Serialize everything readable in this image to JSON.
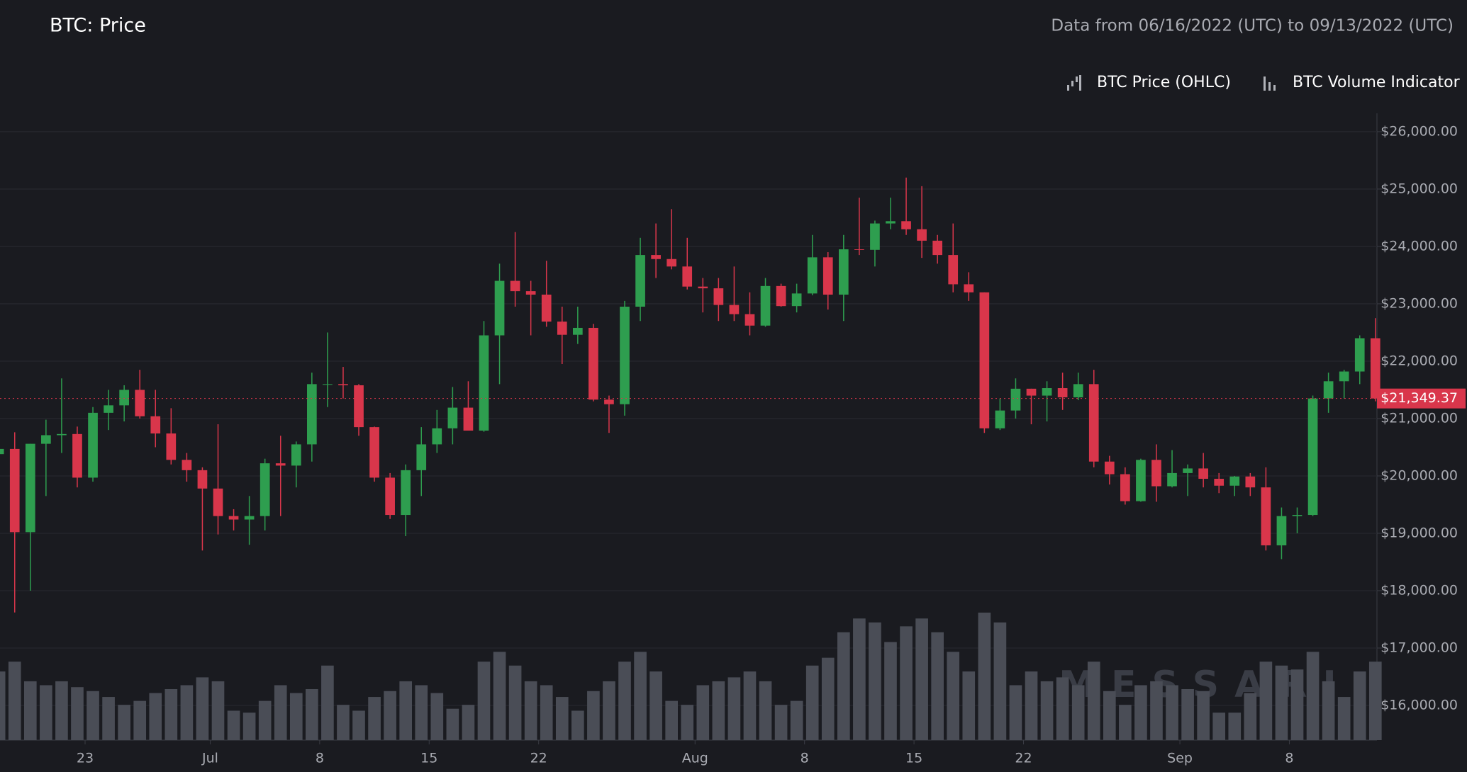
{
  "chart_data": {
    "type": "candlestick",
    "title": "BTC: Price",
    "subtitle": "Data from 06/16/2022 (UTC) to 09/13/2022 (UTC)",
    "legend": [
      "BTC Price (OHLC)",
      "BTC Volume Indicator"
    ],
    "watermark": "MESSARI",
    "up_color": "#2e9e4f",
    "down_color": "#d9364b",
    "volume_color": "#4a4d56",
    "x": [
      "2022-06-17",
      "2022-06-18",
      "2022-06-19",
      "2022-06-20",
      "2022-06-21",
      "2022-06-22",
      "2022-06-23",
      "2022-06-24",
      "2022-06-25",
      "2022-06-26",
      "2022-06-27",
      "2022-06-28",
      "2022-06-29",
      "2022-06-30",
      "2022-07-01",
      "2022-07-02",
      "2022-07-03",
      "2022-07-04",
      "2022-07-05",
      "2022-07-06",
      "2022-07-07",
      "2022-07-08",
      "2022-07-09",
      "2022-07-10",
      "2022-07-11",
      "2022-07-12",
      "2022-07-13",
      "2022-07-14",
      "2022-07-15",
      "2022-07-16",
      "2022-07-17",
      "2022-07-18",
      "2022-07-19",
      "2022-07-20",
      "2022-07-21",
      "2022-07-22",
      "2022-07-23",
      "2022-07-24",
      "2022-07-25",
      "2022-07-26",
      "2022-07-27",
      "2022-07-28",
      "2022-07-29",
      "2022-07-30",
      "2022-07-31",
      "2022-08-01",
      "2022-08-02",
      "2022-08-03",
      "2022-08-04",
      "2022-08-05",
      "2022-08-06",
      "2022-08-07",
      "2022-08-08",
      "2022-08-09",
      "2022-08-10",
      "2022-08-11",
      "2022-08-12",
      "2022-08-13",
      "2022-08-14",
      "2022-08-15",
      "2022-08-16",
      "2022-08-17",
      "2022-08-18",
      "2022-08-19",
      "2022-08-20",
      "2022-08-21",
      "2022-08-22",
      "2022-08-23",
      "2022-08-24",
      "2022-08-25",
      "2022-08-26",
      "2022-08-27",
      "2022-08-28",
      "2022-08-29",
      "2022-08-30",
      "2022-08-31",
      "2022-09-01",
      "2022-09-02",
      "2022-09-03",
      "2022-09-04",
      "2022-09-05",
      "2022-09-06",
      "2022-09-07",
      "2022-09-08",
      "2022-09-09",
      "2022-09-10",
      "2022-09-11",
      "2022-09-12",
      "2022-09-13"
    ],
    "open": [
      20380,
      20470,
      19020,
      20560,
      20710,
      20730,
      19970,
      21100,
      21230,
      21500,
      21040,
      20740,
      20280,
      20100,
      19780,
      19300,
      19240,
      19300,
      20220,
      20180,
      20550,
      21600,
      21600,
      21580,
      20850,
      19970,
      19320,
      20100,
      20550,
      20830,
      21190,
      20790,
      22450,
      23400,
      23220,
      23160,
      22690,
      22460,
      22580,
      21330,
      21250,
      22950,
      23850,
      23780,
      23650,
      23300,
      23270,
      22980,
      22820,
      22620,
      23310,
      22960,
      23180,
      23810,
      23160,
      23950,
      23940,
      24400,
      24440,
      24300,
      24100,
      23850,
      23340,
      23200,
      20830,
      21140,
      21520,
      21400,
      21530,
      21370,
      21600,
      20250,
      20030,
      19560,
      20280,
      19820,
      20050,
      20130,
      19950,
      19830,
      19990,
      19800,
      18790,
      19300,
      19320,
      21350,
      21650,
      21820,
      22400
    ],
    "high": [
      21300,
      20760,
      20560,
      20980,
      21700,
      20860,
      21200,
      21500,
      21580,
      21850,
      21500,
      21180,
      20400,
      20150,
      20900,
      19420,
      19650,
      20300,
      20700,
      20600,
      21800,
      22500,
      21900,
      21600,
      20860,
      20050,
      20200,
      20850,
      21150,
      21550,
      21650,
      22700,
      23700,
      24250,
      23400,
      23750,
      22950,
      22950,
      22650,
      21400,
      23050,
      24150,
      24400,
      24650,
      24150,
      23450,
      23450,
      23650,
      23200,
      23450,
      23350,
      23350,
      24200,
      23900,
      24200,
      24850,
      24450,
      24850,
      25200,
      25050,
      24200,
      24400,
      23550,
      23200,
      21350,
      21700,
      21520,
      21650,
      21800,
      21800,
      21850,
      20350,
      20150,
      20300,
      20550,
      20450,
      20200,
      20400,
      20050,
      20000,
      20050,
      20150,
      19450,
      19450,
      21400,
      21800,
      21850,
      22450,
      22750
    ],
    "low": [
      20230,
      17620,
      18000,
      19650,
      20400,
      19800,
      19900,
      20800,
      20950,
      21000,
      20500,
      20200,
      19900,
      18700,
      18980,
      19050,
      18800,
      19050,
      19300,
      19800,
      20250,
      21200,
      21350,
      20700,
      19900,
      19250,
      18950,
      19650,
      20400,
      20550,
      20800,
      20770,
      21600,
      22950,
      22450,
      22600,
      21950,
      22300,
      21300,
      20750,
      21050,
      22700,
      23450,
      23600,
      23250,
      22850,
      22700,
      22700,
      22450,
      22600,
      22950,
      22850,
      23150,
      22900,
      22700,
      23850,
      23650,
      24300,
      24200,
      23800,
      23700,
      23200,
      23050,
      20750,
      20800,
      21000,
      20900,
      20950,
      21150,
      21320,
      20150,
      19850,
      19500,
      19550,
      19550,
      19800,
      19650,
      19800,
      19700,
      19650,
      19650,
      18700,
      18550,
      19000,
      19300,
      21100,
      21350,
      21600,
      21300
    ],
    "close": [
      20470,
      19020,
      20560,
      20710,
      20730,
      19970,
      21100,
      21230,
      21500,
      21040,
      20740,
      20280,
      20100,
      19780,
      19300,
      19240,
      19300,
      20220,
      20180,
      20550,
      21600,
      21600,
      21580,
      20850,
      19970,
      19320,
      20100,
      20550,
      20830,
      21190,
      20790,
      22450,
      23400,
      23220,
      23160,
      22690,
      22460,
      22580,
      21330,
      21250,
      22950,
      23850,
      23780,
      23650,
      23300,
      23270,
      22980,
      22820,
      22620,
      23310,
      22960,
      23180,
      23810,
      23160,
      23950,
      23940,
      24400,
      24440,
      24300,
      24100,
      23850,
      23340,
      23200,
      20830,
      21140,
      21520,
      21400,
      21530,
      21370,
      21600,
      20250,
      20030,
      19560,
      20280,
      19820,
      20050,
      20130,
      19950,
      19830,
      19990,
      19800,
      18790,
      19300,
      19320,
      21350,
      21650,
      21820,
      22400,
      21349.37
    ],
    "volume": [
      35,
      40,
      30,
      28,
      30,
      27,
      25,
      22,
      18,
      20,
      24,
      26,
      28,
      32,
      30,
      15,
      14,
      20,
      28,
      24,
      26,
      38,
      18,
      15,
      22,
      25,
      30,
      28,
      24,
      16,
      18,
      40,
      45,
      38,
      30,
      28,
      22,
      15,
      25,
      30,
      40,
      45,
      35,
      20,
      18,
      28,
      30,
      32,
      35,
      30,
      18,
      20,
      38,
      42,
      55,
      62,
      60,
      50,
      58,
      62,
      55,
      45,
      35,
      65,
      60,
      28,
      35,
      30,
      32,
      28,
      40,
      25,
      18,
      28,
      30,
      28,
      26,
      25,
      14,
      14,
      24,
      40,
      38,
      36,
      45,
      30,
      22,
      35,
      40
    ],
    "volume_lim": [
      0,
      100
    ],
    "last_price": {
      "value": 21349.37,
      "label": "$21,349.37"
    },
    "xlim": [
      "2022-06-17T13:26:00Z",
      "2022-09-13T14:24:00Z"
    ],
    "xticks": [
      {
        "value": "2022-06-23",
        "label": "23"
      },
      {
        "value": "2022-07-01",
        "label": "Jul"
      },
      {
        "value": "2022-07-08",
        "label": "8"
      },
      {
        "value": "2022-07-15",
        "label": "15"
      },
      {
        "value": "2022-07-22",
        "label": "22"
      },
      {
        "value": "2022-08-01",
        "label": "Aug"
      },
      {
        "value": "2022-08-08",
        "label": "8"
      },
      {
        "value": "2022-08-15",
        "label": "15"
      },
      {
        "value": "2022-08-22",
        "label": "22"
      },
      {
        "value": "2022-09-01",
        "label": "Sep"
      },
      {
        "value": "2022-09-08",
        "label": "8"
      }
    ],
    "ylim": [
      15395,
      26320
    ],
    "yticks": [
      {
        "value": 16000,
        "label": "$16,000.00"
      },
      {
        "value": 17000,
        "label": "$17,000.00"
      },
      {
        "value": 18000,
        "label": "$18,000.00"
      },
      {
        "value": 19000,
        "label": "$19,000.00"
      },
      {
        "value": 20000,
        "label": "$20,000.00"
      },
      {
        "value": 21000,
        "label": "$21,000.00"
      },
      {
        "value": 22000,
        "label": "$22,000.00"
      },
      {
        "value": 23000,
        "label": "$23,000.00"
      },
      {
        "value": 24000,
        "label": "$24,000.00"
      },
      {
        "value": 25000,
        "label": "$25,000.00"
      },
      {
        "value": 26000,
        "label": "$26,000.00"
      }
    ],
    "grid": true
  }
}
